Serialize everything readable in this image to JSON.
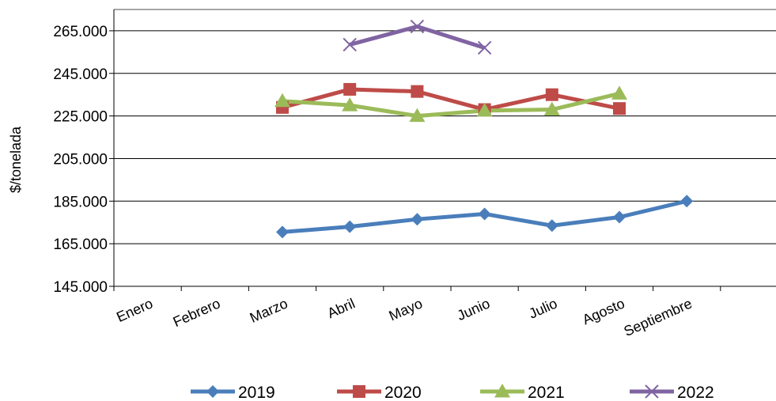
{
  "chart_data": {
    "type": "line",
    "title": "",
    "xlabel": "",
    "ylabel": "$/tonelada",
    "categories": [
      "Enero",
      "Febrero",
      "Marzo",
      "Abril",
      "Mayo",
      "Junio",
      "Julio",
      "Agosto",
      "Septiembre"
    ],
    "ylim": [
      145000,
      275000
    ],
    "yticks": [
      145000,
      165000,
      185000,
      205000,
      225000,
      245000,
      265000
    ],
    "ytick_labels": [
      "145.000",
      "165.000",
      "185.000",
      "205.000",
      "225.000",
      "245.000",
      "265.000"
    ],
    "grid": "horizontal",
    "legend_position": "bottom",
    "series": [
      {
        "name": "2019",
        "color": "#4A7EBB",
        "marker": "diamond",
        "values": [
          null,
          null,
          170500,
          173000,
          176500,
          179000,
          173500,
          177500,
          185000
        ]
      },
      {
        "name": "2020",
        "color": "#BE4B48",
        "marker": "square",
        "values": [
          null,
          null,
          229000,
          237500,
          236500,
          228000,
          235000,
          228500,
          null
        ]
      },
      {
        "name": "2021",
        "color": "#9BBB59",
        "marker": "triangle",
        "values": [
          null,
          null,
          232000,
          230000,
          225000,
          227500,
          228000,
          235500,
          null
        ]
      },
      {
        "name": "2022",
        "color": "#8064A2",
        "marker": "x",
        "values": [
          null,
          null,
          null,
          258500,
          267000,
          257000,
          null,
          null,
          null
        ]
      }
    ]
  }
}
